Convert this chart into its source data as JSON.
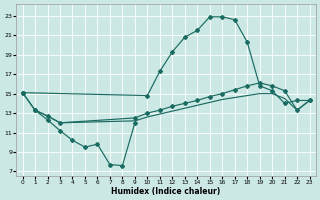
{
  "bg_color": "#cce8e4",
  "grid_color": "#b8d8d4",
  "line_color": "#1a6b62",
  "marker": "D",
  "marker_size": 2.0,
  "xlabel": "Humidex (Indice chaleur)",
  "xlim": [
    -0.5,
    23.5
  ],
  "ylim": [
    6.5,
    24.2
  ],
  "yticks": [
    7,
    9,
    11,
    13,
    15,
    17,
    19,
    21,
    23
  ],
  "xticks": [
    0,
    1,
    2,
    3,
    4,
    5,
    6,
    7,
    8,
    9,
    10,
    11,
    12,
    13,
    14,
    15,
    16,
    17,
    18,
    19,
    20,
    21,
    22,
    23
  ],
  "curve_upper_x": [
    0,
    10,
    11,
    12,
    13,
    14,
    15,
    16,
    17,
    18,
    19,
    20,
    21,
    22,
    23
  ],
  "curve_upper_y": [
    15.1,
    14.8,
    17.3,
    19.3,
    20.8,
    21.5,
    22.9,
    22.9,
    22.6,
    20.3,
    15.8,
    15.3,
    14.0,
    14.3,
    14.3
  ],
  "curve_mid1_x": [
    0,
    1,
    2,
    3,
    9,
    10,
    11,
    12,
    13,
    14,
    15,
    16,
    17,
    18,
    19,
    20,
    21,
    22,
    23
  ],
  "curve_mid1_y": [
    15.1,
    13.3,
    12.7,
    12.0,
    12.5,
    13.0,
    13.3,
    13.7,
    14.0,
    14.3,
    14.7,
    15.0,
    15.4,
    15.8,
    16.1,
    15.8,
    15.3,
    13.3,
    14.3
  ],
  "curve_mid2_x": [
    1,
    2,
    3,
    9,
    10,
    11,
    12,
    13,
    14,
    15,
    16,
    17,
    18,
    19,
    20,
    21,
    22,
    23
  ],
  "curve_mid2_y": [
    13.3,
    12.7,
    12.0,
    12.2,
    12.6,
    12.9,
    13.2,
    13.5,
    13.8,
    14.1,
    14.4,
    14.6,
    14.8,
    15.0,
    15.0,
    14.5,
    13.3,
    14.3
  ],
  "curve_zigzag_x": [
    0,
    1,
    2,
    3,
    4,
    5,
    6,
    7,
    8,
    9
  ],
  "curve_zigzag_y": [
    15.1,
    13.3,
    12.3,
    11.2,
    10.2,
    9.5,
    9.8,
    7.7,
    7.6,
    12.0
  ]
}
